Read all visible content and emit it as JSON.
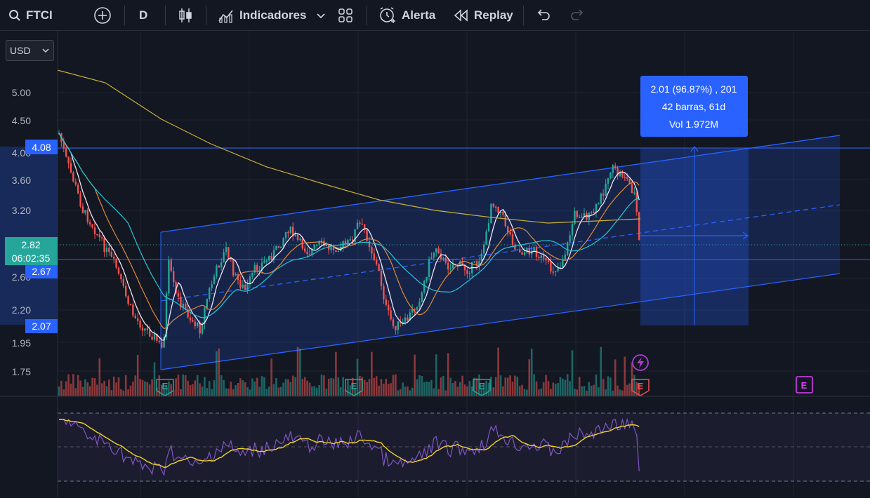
{
  "toolbar": {
    "symbol": "FTCI",
    "interval": "D",
    "indicators_label": "Indicadores",
    "alert_label": "Alerta",
    "replay_label": "Replay"
  },
  "currency": {
    "value": "USD"
  },
  "price_axis": {
    "ticks": [
      "5.00",
      "4.50",
      "3.60",
      "3.20",
      "2.20",
      "1.95",
      "1.75"
    ],
    "hidden_ticks": [
      "4.00",
      "2.60"
    ],
    "tag_upper": "4.08",
    "tag_current": "2.82",
    "countdown": "06:02:35",
    "tag_lower_mid": "2.67",
    "tag_lower": "2.07"
  },
  "measure_box": {
    "line1": "2.01 (96.87%) , 201",
    "line2": "42 barras, 61d",
    "line3": "Vol 1.972M"
  },
  "events": {
    "earnings_letter": "E"
  },
  "colors": {
    "background": "#131722",
    "up": "#26a69a",
    "down": "#ef5350",
    "channel": "#2962ff",
    "measure": "#2962ff",
    "rsi": "#7e57c2",
    "rsi_ma": "#f0d22b"
  }
}
